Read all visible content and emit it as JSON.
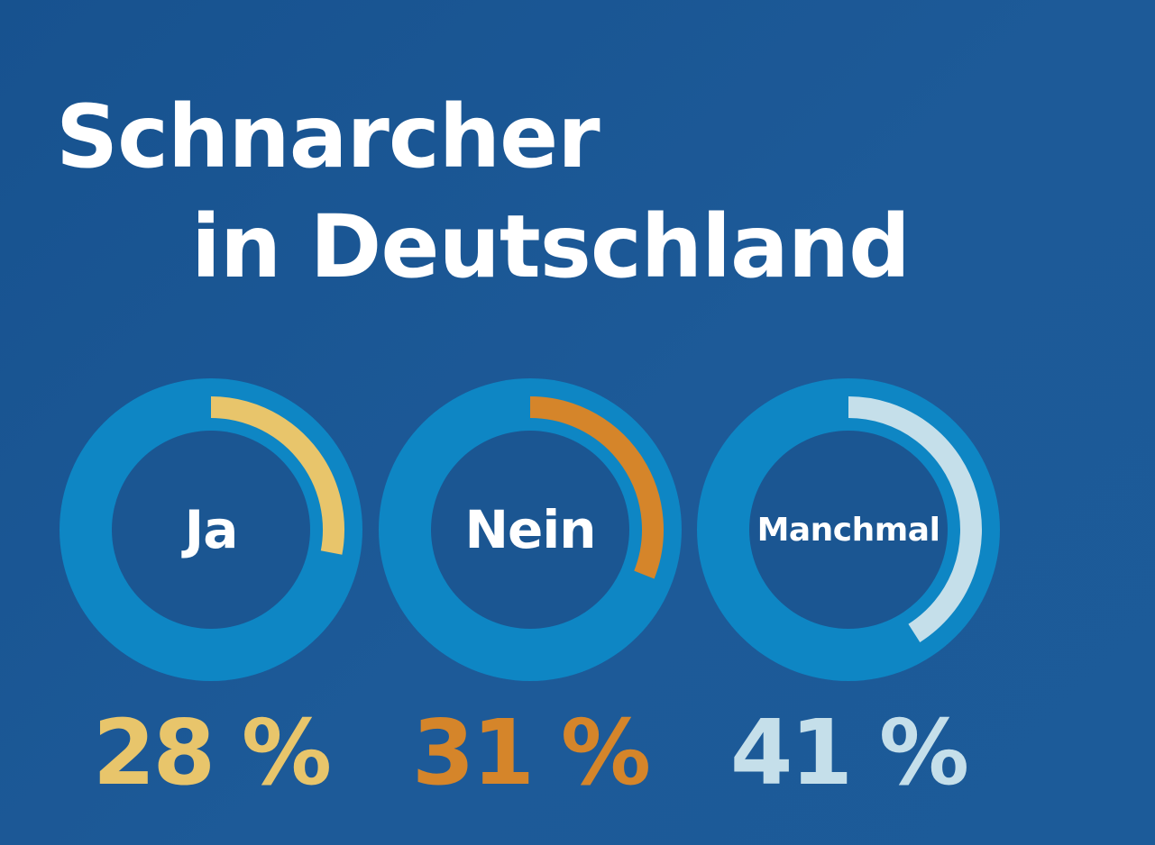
{
  "title": {
    "line1": "Schnarcher",
    "line2": "in Deutschland"
  },
  "colors": {
    "ring": "#0e86c4",
    "inner": "#1b5692",
    "ja": "#e8c56b",
    "nein": "#d5852a",
    "manchmal": "#c5dfea"
  },
  "chart_data": {
    "type": "pie",
    "title": "Schnarcher in Deutschland",
    "categories": [
      "Ja",
      "Nein",
      "Manchmal"
    ],
    "values": [
      28,
      31,
      41
    ],
    "value_labels": [
      "28 %",
      "31 %",
      "41 %"
    ],
    "unit": "%"
  }
}
